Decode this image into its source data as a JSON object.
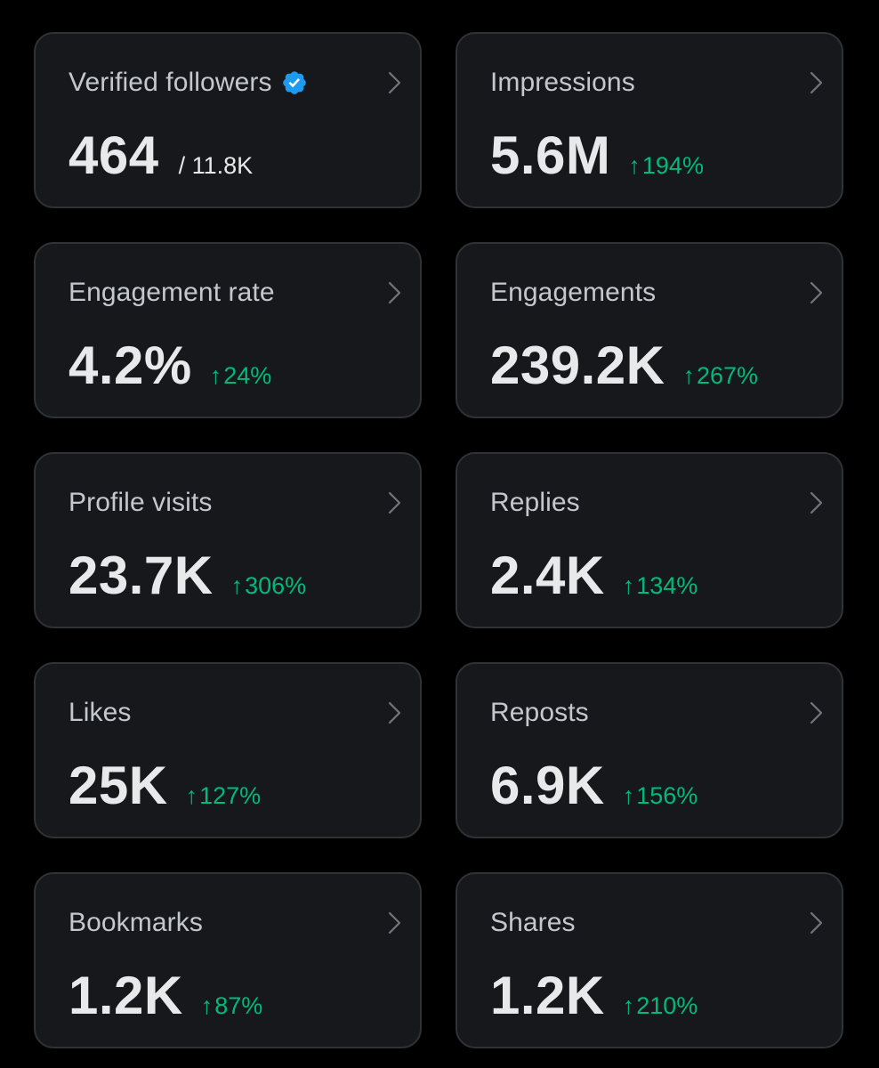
{
  "colors": {
    "background": "#000000",
    "card": "#16181c",
    "border": "#2f3336",
    "label": "#c4c8cc",
    "value": "#e7e9ea",
    "positive": "#00ba7c",
    "verified": "#1d9bf0"
  },
  "cards": [
    {
      "label": "Verified followers",
      "value": "464",
      "suffix": "/ 11.8K",
      "icon": "verified-badge-icon"
    },
    {
      "label": "Impressions",
      "value": "5.6M",
      "change_arrow": "↑",
      "change": "194%"
    },
    {
      "label": "Engagement rate",
      "value": "4.2%",
      "change_arrow": "↑",
      "change": "24%"
    },
    {
      "label": "Engagements",
      "value": "239.2K",
      "change_arrow": "↑",
      "change": "267%"
    },
    {
      "label": "Profile visits",
      "value": "23.7K",
      "change_arrow": "↑",
      "change": "306%"
    },
    {
      "label": "Replies",
      "value": "2.4K",
      "change_arrow": "↑",
      "change": "134%"
    },
    {
      "label": "Likes",
      "value": "25K",
      "change_arrow": "↑",
      "change": "127%"
    },
    {
      "label": "Reposts",
      "value": "6.9K",
      "change_arrow": "↑",
      "change": "156%"
    },
    {
      "label": "Bookmarks",
      "value": "1.2K",
      "change_arrow": "↑",
      "change": "87%"
    },
    {
      "label": "Shares",
      "value": "1.2K",
      "change_arrow": "↑",
      "change": "210%"
    }
  ]
}
